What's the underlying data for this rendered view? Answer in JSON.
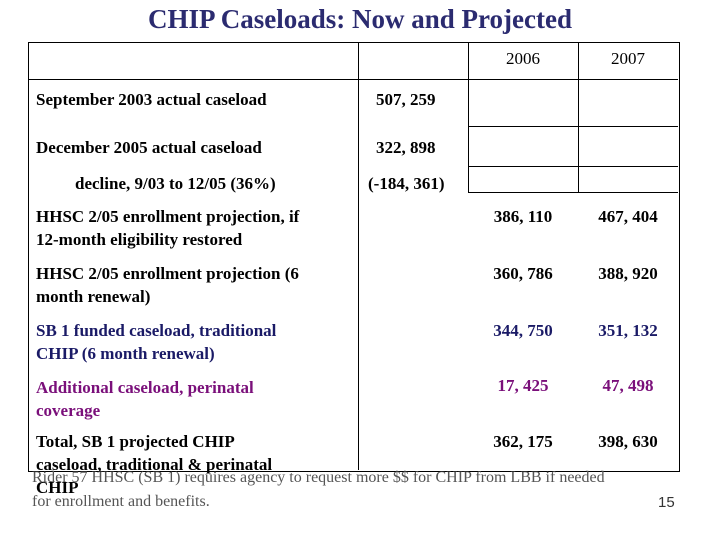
{
  "title": "CHIP Caseloads: Now and Projected",
  "columns": [
    "2006",
    "2007"
  ],
  "rows": [
    {
      "label": "September 2003 actual caseload",
      "value": "507, 259"
    },
    {
      "label": "December 2005 actual caseload",
      "value": "322, 898"
    },
    {
      "label": "decline, 9/03 to 12/05 (36%)",
      "value": "(-184, 361)"
    },
    {
      "line1": "HHSC 2/05 enrollment projection, if",
      "line2": "12-month eligibility restored",
      "y2006": "386, 110",
      "y2007": "467, 404"
    },
    {
      "line1": "HHSC 2/05 enrollment projection (6",
      "line2": "month renewal)",
      "y2006": "360, 786",
      "y2007": "388, 920"
    },
    {
      "line1": "SB 1 funded caseload, traditional",
      "line2": "CHIP (6 month renewal)",
      "y2006": "344, 750",
      "y2007": "351, 132"
    },
    {
      "line1": "Additional caseload, perinatal",
      "line2": "coverage",
      "y2006": "17, 425",
      "y2007": "47, 498"
    },
    {
      "line1": "Total, SB 1 projected CHIP",
      "line2": "caseload, traditional & perinatal",
      "line3": "CHIP",
      "y2006": "362, 175",
      "y2007": "398, 630"
    }
  ],
  "footer": {
    "line1": "Rider 57 HHSC (SB 1) requires agency to request more $$ for CHIP from LBB if needed",
    "line2": "for enrollment and benefits."
  },
  "page_number": "15",
  "colors": {
    "title": "#2b2b70",
    "perinatal": "#7a0f7a",
    "sb1": "#1a1a66"
  }
}
